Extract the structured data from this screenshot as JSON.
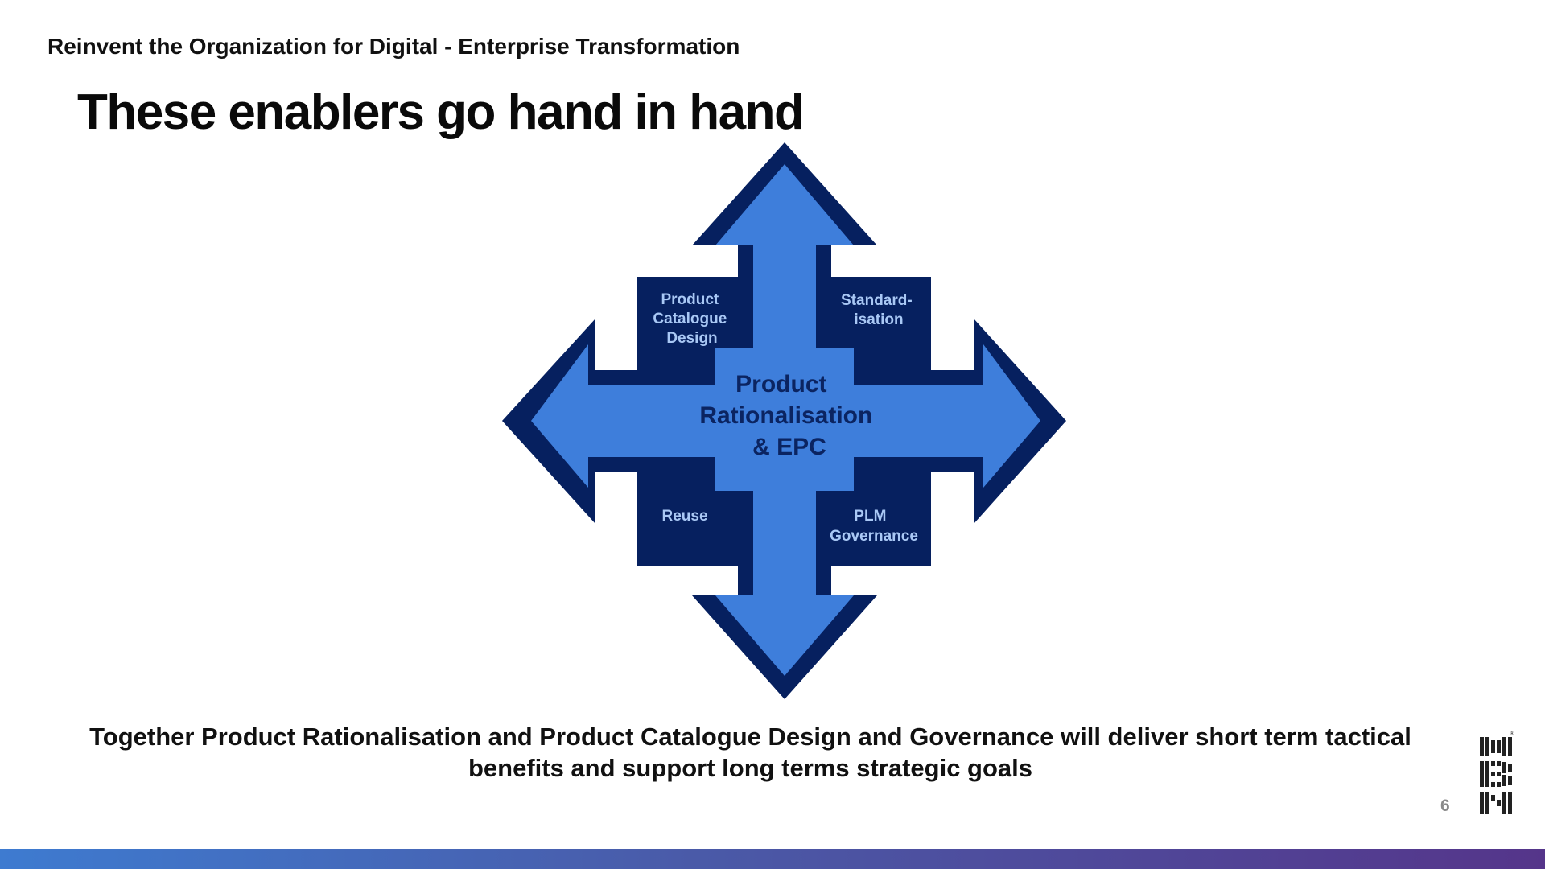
{
  "header": {
    "kicker": "Reinvent the Organization for Digital - Enterprise Transformation",
    "title": "These enablers go hand in hand"
  },
  "diagram": {
    "center": {
      "lines": [
        "Product",
        "Rationalisation",
        "& EPC"
      ]
    },
    "quadrants": {
      "top_left": [
        "Product",
        "Catalogue",
        "Design"
      ],
      "top_right": [
        "Standard-",
        "isation"
      ],
      "bottom_left": [
        "Reuse"
      ],
      "bottom_right": [
        "PLM",
        "Governance"
      ]
    },
    "colors": {
      "dark_navy": "#06205f",
      "arrow_blue": "#3e7edb",
      "center_text": "#0b2461",
      "quadrant_text": "#a9c8f5"
    }
  },
  "footer": {
    "statement_line1": "Together Product Rationalisation and Product Catalogue Design and Governance will deliver short term tactical",
    "statement_line2": "benefits and support long terms strategic goals",
    "page_number": "6"
  },
  "logo": {
    "name": "IBM",
    "registered_mark": "®"
  }
}
